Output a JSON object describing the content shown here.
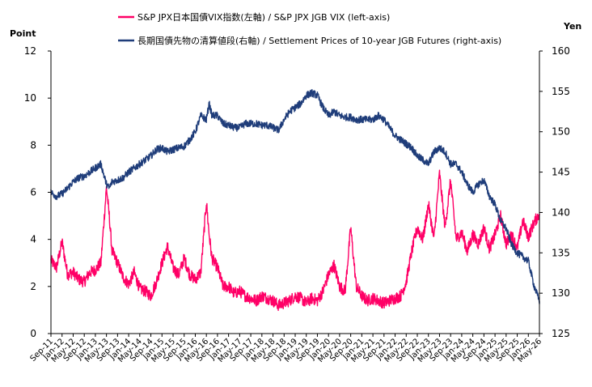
{
  "chart_data": {
    "type": "line",
    "left_axis_unit": "Point",
    "right_axis_unit": "Yen",
    "left_ylim": [
      0,
      12
    ],
    "left_yticks": [
      "0",
      "2",
      "4",
      "6",
      "8",
      "10",
      "12"
    ],
    "right_ylim": [
      125,
      160
    ],
    "right_yticks": [
      "125",
      "130",
      "135",
      "140",
      "145",
      "150",
      "155",
      "160"
    ],
    "x_tick_labels": [
      "Sep-11",
      "Jan-12",
      "May-12",
      "Sep-12",
      "Jan-13",
      "May-13",
      "Sep-13",
      "Jan-14",
      "May-14",
      "Sep-14",
      "Jan-15",
      "May-15",
      "Sep-15",
      "Jan-16",
      "May-16",
      "Sep-16",
      "Jan-17",
      "May-17",
      "Sep-17",
      "Jan-18",
      "May-18",
      "Sep-18",
      "Jan-19",
      "May-19",
      "Sep-19",
      "Jan-20",
      "May-20",
      "Sep-20",
      "Jan-21",
      "May-21",
      "Sep-21",
      "Jan-22",
      "May-22",
      "Sep-22",
      "Jan-23",
      "May-23",
      "Sep-23",
      "Jan-24",
      "May-24",
      "Sep-24",
      "Jan-25",
      "May-25",
      "Sep-25",
      "Jan-26",
      "May-26"
    ],
    "grid": false,
    "legend_position": "top",
    "series": [
      {
        "name": "S&P JPX日本国債VIX指数(左軸) / S&P JPX JGB VIX (left-axis)",
        "axis": "left",
        "color": "#ff0066",
        "x": [
          "Sep-11",
          "Nov-11",
          "Jan-12",
          "Mar-12",
          "May-12",
          "Jul-12",
          "Sep-12",
          "Nov-12",
          "Jan-13",
          "Mar-13",
          "May-13",
          "Jun-13",
          "Jul-13",
          "Sep-13",
          "Nov-13",
          "Jan-14",
          "Mar-14",
          "May-14",
          "Jul-14",
          "Sep-14",
          "Nov-14",
          "Jan-15",
          "Mar-15",
          "May-15",
          "Jul-15",
          "Sep-15",
          "Nov-15",
          "Jan-16",
          "Mar-16",
          "May-16",
          "Jun-16",
          "Jul-16",
          "Sep-16",
          "Nov-16",
          "Jan-17",
          "Mar-17",
          "May-17",
          "Jul-17",
          "Sep-17",
          "Nov-17",
          "Jan-18",
          "Mar-18",
          "May-18",
          "Jul-18",
          "Sep-18",
          "Nov-18",
          "Jan-19",
          "Mar-19",
          "May-19",
          "Jul-19",
          "Sep-19",
          "Nov-19",
          "Jan-20",
          "Mar-20",
          "May-20",
          "Jul-20",
          "Sep-20",
          "Nov-20",
          "Jan-21",
          "Mar-21",
          "May-21",
          "Jul-21",
          "Sep-21",
          "Nov-21",
          "Jan-22",
          "Mar-22",
          "May-22",
          "Jul-22",
          "Sep-22",
          "Nov-22",
          "Jan-23",
          "Mar-23",
          "May-23",
          "Jul-23",
          "Sep-23",
          "Nov-23",
          "Jan-24",
          "Mar-24",
          "May-24",
          "Jul-24",
          "Sep-24",
          "Nov-24",
          "Jan-25",
          "Mar-25",
          "May-25",
          "Jul-25",
          "Sep-25",
          "Nov-25",
          "Jan-26",
          "Mar-26",
          "May-26"
        ],
        "values": [
          3.1,
          2.8,
          3.9,
          2.5,
          2.6,
          2.3,
          2.2,
          2.6,
          2.7,
          3.0,
          6.2,
          5.0,
          3.5,
          3.0,
          2.4,
          2.1,
          2.6,
          1.9,
          1.8,
          1.6,
          2.2,
          3.0,
          3.7,
          2.8,
          2.5,
          3.2,
          2.5,
          2.3,
          2.6,
          5.6,
          4.2,
          3.2,
          2.8,
          2.0,
          2.0,
          1.7,
          1.8,
          1.6,
          1.5,
          1.4,
          1.6,
          1.5,
          1.4,
          1.2,
          1.3,
          1.4,
          1.6,
          1.5,
          1.3,
          1.5,
          1.4,
          1.8,
          2.5,
          2.9,
          2.0,
          1.8,
          4.5,
          2.0,
          1.6,
          1.4,
          1.5,
          1.4,
          1.3,
          1.4,
          1.5,
          1.6,
          2.2,
          3.5,
          4.5,
          4.0,
          5.5,
          4.0,
          6.8,
          4.5,
          6.5,
          4.0,
          4.3,
          3.5,
          4.2,
          3.8,
          4.5,
          3.6,
          4.2,
          5.0,
          3.8,
          4.2,
          3.6,
          4.8,
          4.1,
          4.7,
          5.1
        ]
      },
      {
        "name": "長期国債先物の清算値段(右軸) / Settlement Prices of 10-year JGB Futures (right-axis)",
        "axis": "right",
        "color": "#1f3d7a",
        "x": [
          "Sep-11",
          "Nov-11",
          "Jan-12",
          "Mar-12",
          "May-12",
          "Jul-12",
          "Sep-12",
          "Nov-12",
          "Jan-13",
          "Mar-13",
          "May-13",
          "Jun-13",
          "Jul-13",
          "Sep-13",
          "Nov-13",
          "Jan-14",
          "Mar-14",
          "May-14",
          "Jul-14",
          "Sep-14",
          "Nov-14",
          "Jan-15",
          "Mar-15",
          "May-15",
          "Jul-15",
          "Sep-15",
          "Nov-15",
          "Jan-16",
          "Mar-16",
          "May-16",
          "Jun-16",
          "Jul-16",
          "Sep-16",
          "Nov-16",
          "Jan-17",
          "Mar-17",
          "May-17",
          "Jul-17",
          "Sep-17",
          "Nov-17",
          "Jan-18",
          "Mar-18",
          "May-18",
          "Jul-18",
          "Sep-18",
          "Nov-18",
          "Jan-19",
          "Mar-19",
          "May-19",
          "Jul-19",
          "Sep-19",
          "Nov-19",
          "Jan-20",
          "Mar-20",
          "May-20",
          "Jul-20",
          "Sep-20",
          "Nov-20",
          "Jan-21",
          "Mar-21",
          "May-21",
          "Jul-21",
          "Sep-21",
          "Nov-21",
          "Jan-22",
          "Mar-22",
          "May-22",
          "Jul-22",
          "Sep-22",
          "Nov-22",
          "Jan-23",
          "Mar-23",
          "May-23",
          "Jul-23",
          "Sep-23",
          "Nov-23",
          "Jan-24",
          "Mar-24",
          "May-24",
          "Jul-24",
          "Sep-24",
          "Nov-24",
          "Jan-25",
          "Mar-25",
          "May-25",
          "Jul-25",
          "Sep-25",
          "Nov-25",
          "Jan-26",
          "Mar-26",
          "May-26"
        ],
        "values": [
          142.5,
          142.0,
          142.3,
          143.0,
          143.8,
          144.3,
          144.5,
          145.0,
          145.5,
          146.0,
          143.5,
          143.0,
          143.8,
          144.0,
          144.3,
          145.0,
          145.5,
          146.0,
          146.5,
          147.0,
          147.8,
          148.0,
          147.5,
          147.8,
          148.0,
          148.2,
          149.0,
          150.0,
          152.0,
          151.5,
          153.5,
          152.0,
          152.0,
          151.0,
          150.8,
          150.5,
          150.5,
          151.0,
          151.0,
          151.0,
          150.8,
          150.8,
          150.5,
          150.2,
          151.5,
          152.5,
          153.0,
          153.5,
          154.5,
          154.8,
          154.5,
          153.0,
          152.0,
          152.5,
          152.0,
          151.8,
          151.8,
          151.5,
          151.5,
          151.5,
          151.5,
          152.0,
          151.5,
          150.5,
          149.5,
          149.0,
          148.5,
          148.0,
          147.0,
          146.5,
          146.0,
          147.5,
          148.0,
          147.5,
          146.0,
          146.0,
          145.0,
          143.5,
          142.5,
          143.5,
          144.0,
          142.0,
          141.0,
          139.0,
          138.0,
          136.0,
          135.0,
          134.5,
          134.0,
          131.0,
          129.0
        ]
      }
    ]
  }
}
